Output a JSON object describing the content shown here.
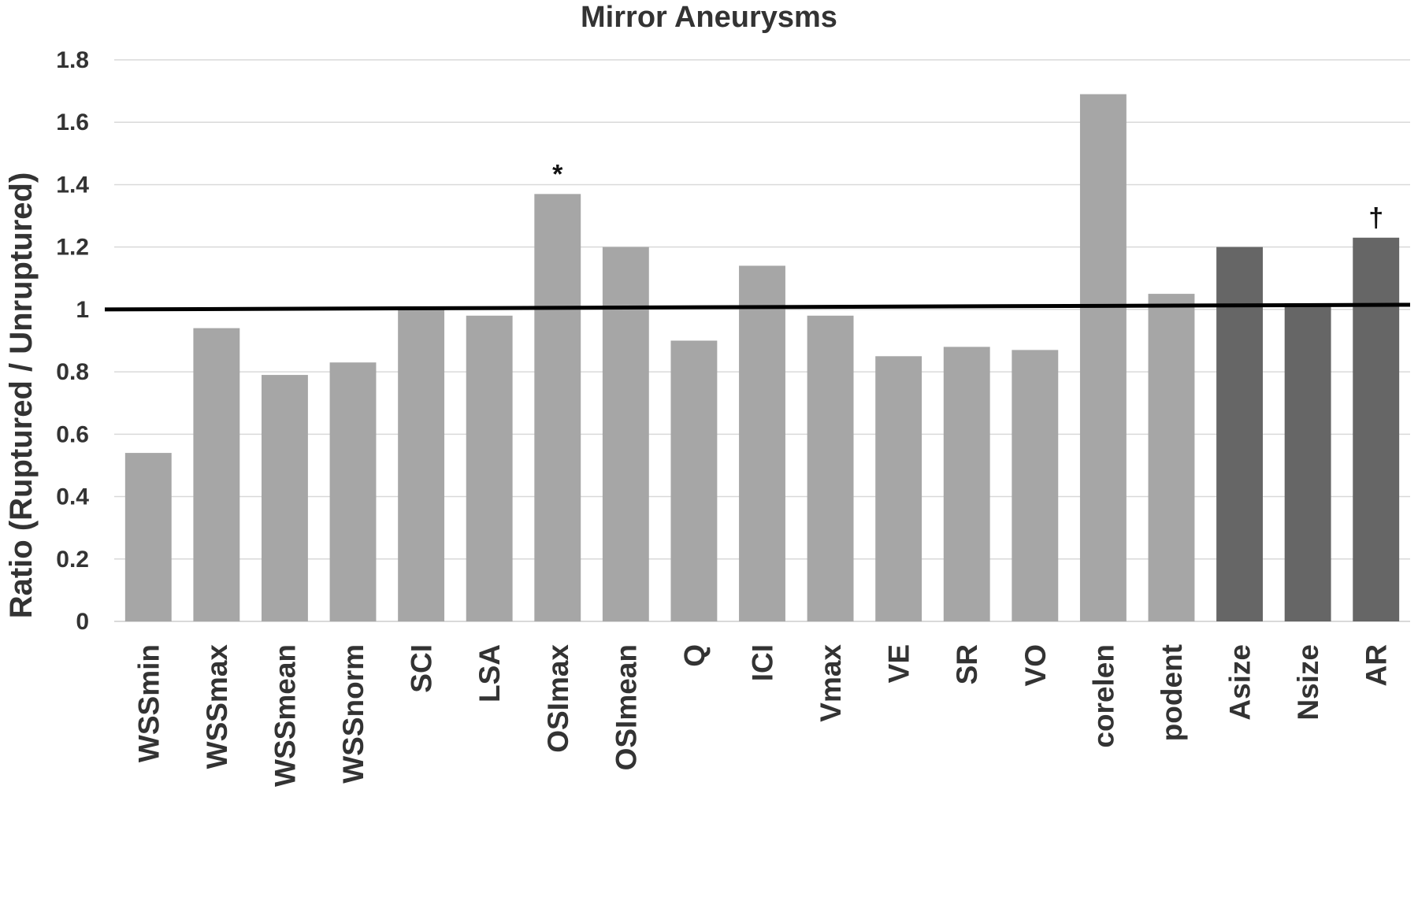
{
  "chart_data": {
    "type": "bar",
    "title": "Mirror Aneurysms",
    "xlabel": "",
    "ylabel": "Ratio (Ruptured / Unruptured)",
    "ylim": [
      0,
      1.8
    ],
    "yticks": [
      0,
      0.2,
      0.4,
      0.6,
      0.8,
      1,
      1.2,
      1.4,
      1.6,
      1.8
    ],
    "ytick_labels": [
      "0",
      "0.2",
      "0.4",
      "0.6",
      "0.8",
      "1",
      "1.2",
      "1.4",
      "1.6",
      "1.8"
    ],
    "grid": true,
    "categories": [
      "WSSmin",
      "WSSmax",
      "WSSmean",
      "WSSnorm",
      "SCI",
      "LSA",
      "OSImax",
      "OSImean",
      "Q",
      "ICI",
      "Vmax",
      "VE",
      "SR",
      "VO",
      "corelen",
      "podent",
      "Asize",
      "Nsize",
      "AR"
    ],
    "values": [
      0.54,
      0.94,
      0.79,
      0.83,
      1.0,
      0.98,
      1.37,
      1.2,
      0.9,
      1.14,
      0.98,
      0.85,
      0.88,
      0.87,
      1.69,
      1.05,
      1.2,
      1.02,
      1.23
    ],
    "bar_colors": [
      "#a6a6a6",
      "#a6a6a6",
      "#a6a6a6",
      "#a6a6a6",
      "#a6a6a6",
      "#a6a6a6",
      "#a6a6a6",
      "#a6a6a6",
      "#a6a6a6",
      "#a6a6a6",
      "#a6a6a6",
      "#a6a6a6",
      "#a6a6a6",
      "#a6a6a6",
      "#a6a6a6",
      "#a6a6a6",
      "#666666",
      "#666666",
      "#666666"
    ],
    "reference_line": {
      "y_start": 1.0,
      "y_end": 1.015,
      "color": "#000000"
    },
    "annotations": [
      {
        "category": "OSImax",
        "text": "*"
      },
      {
        "category": "AR",
        "text": "†"
      }
    ]
  }
}
